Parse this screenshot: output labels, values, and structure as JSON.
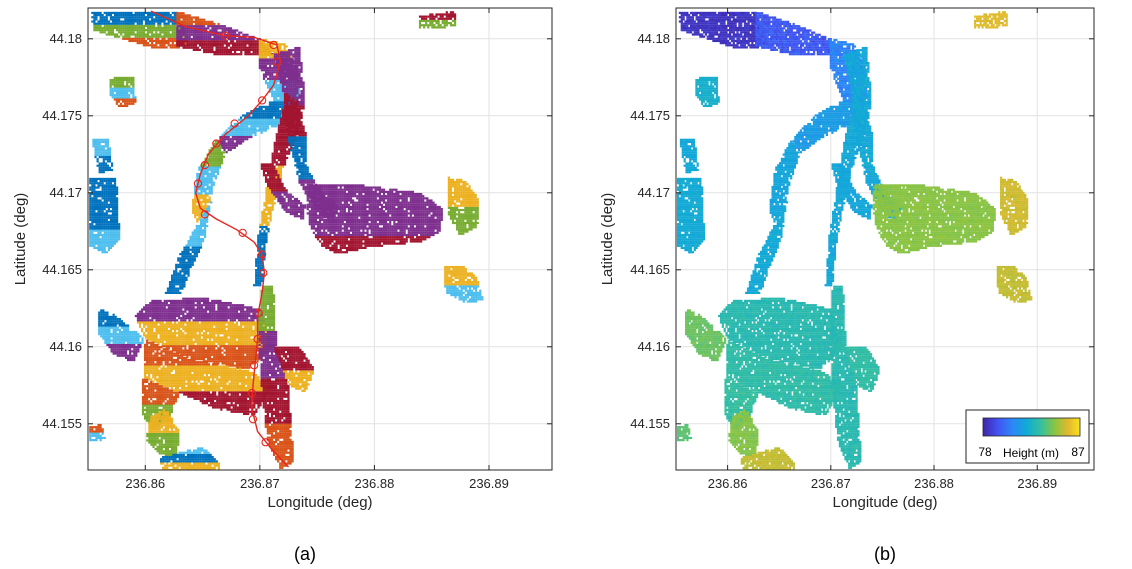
{
  "panels": [
    {
      "caption": "(a)"
    },
    {
      "caption": "(b)"
    }
  ],
  "colorbar": {
    "label": "Height (m)",
    "min": "78",
    "max": "87"
  },
  "cluster_colors": [
    "#0072BD",
    "#D95319",
    "#EDB120",
    "#7E2F8E",
    "#77AC30",
    "#4DBEEE",
    "#A2142F"
  ],
  "chart_data": [
    {
      "type": "scatter",
      "xlabel": "Longitude (deg)",
      "ylabel": "Latitude (deg)",
      "xlim": [
        236.855,
        236.8955
      ],
      "ylim": [
        44.152,
        44.182
      ],
      "xticks": [
        "236.86",
        "236.87",
        "236.88",
        "236.89"
      ],
      "yticks": [
        "44.155",
        "44.16",
        "44.165",
        "44.17",
        "44.175",
        "44.18"
      ],
      "grid": true,
      "coloring": "cluster",
      "path": {
        "color": "#E6261F",
        "points": [
          [
            236.8605,
            44.1818
          ],
          [
            236.8635,
            44.1808
          ],
          [
            236.867,
            44.1802
          ],
          [
            236.8695,
            44.1801
          ],
          [
            236.8715,
            44.1796
          ],
          [
            236.8718,
            44.1785
          ],
          [
            236.8712,
            44.177
          ],
          [
            236.8702,
            44.176
          ],
          [
            236.869,
            44.175
          ],
          [
            236.867,
            44.1738
          ],
          [
            236.8655,
            44.1725
          ],
          [
            236.8648,
            44.1712
          ],
          [
            236.8644,
            44.17
          ],
          [
            236.8648,
            44.169
          ],
          [
            236.8662,
            44.1683
          ],
          [
            236.868,
            44.1676
          ],
          [
            236.8695,
            44.1668
          ],
          [
            236.8702,
            44.166
          ],
          [
            236.8704,
            44.1648
          ],
          [
            236.8702,
            44.1635
          ],
          [
            236.8698,
            44.162
          ],
          [
            236.8698,
            44.1605
          ],
          [
            236.8696,
            44.159
          ],
          [
            236.8694,
            44.1575
          ],
          [
            236.8693,
            44.156
          ],
          [
            236.8698,
            44.1545
          ],
          [
            236.8712,
            44.1532
          ],
          [
            236.8725,
            44.1522
          ]
        ],
        "markers": [
          [
            236.867,
            44.1802
          ],
          [
            236.8712,
            44.1796
          ],
          [
            236.8715,
            44.1785
          ],
          [
            236.8702,
            44.176
          ],
          [
            236.8678,
            44.1745
          ],
          [
            236.8662,
            44.1732
          ],
          [
            236.8652,
            44.1718
          ],
          [
            236.8646,
            44.1706
          ],
          [
            236.8652,
            44.1686
          ],
          [
            236.8685,
            44.1674
          ],
          [
            236.8702,
            44.166
          ],
          [
            236.8703,
            44.1648
          ],
          [
            236.8699,
            44.1622
          ],
          [
            236.8698,
            44.1605
          ],
          [
            236.8695,
            44.1588
          ],
          [
            236.8693,
            44.157
          ],
          [
            236.8694,
            44.1553
          ],
          [
            236.8705,
            44.1538
          ]
        ]
      }
    },
    {
      "type": "scatter",
      "xlabel": "Longitude (deg)",
      "ylabel": "Latitude (deg)",
      "xlim": [
        236.855,
        236.8955
      ],
      "ylim": [
        44.152,
        44.182
      ],
      "xticks": [
        "236.86",
        "236.87",
        "236.88",
        "236.89"
      ],
      "yticks": [
        "44.155",
        "44.16",
        "44.165",
        "44.17",
        "44.175",
        "44.18"
      ],
      "grid": true,
      "coloring": "height",
      "color_range": [
        78,
        87
      ],
      "legend": "bottom-right"
    }
  ]
}
